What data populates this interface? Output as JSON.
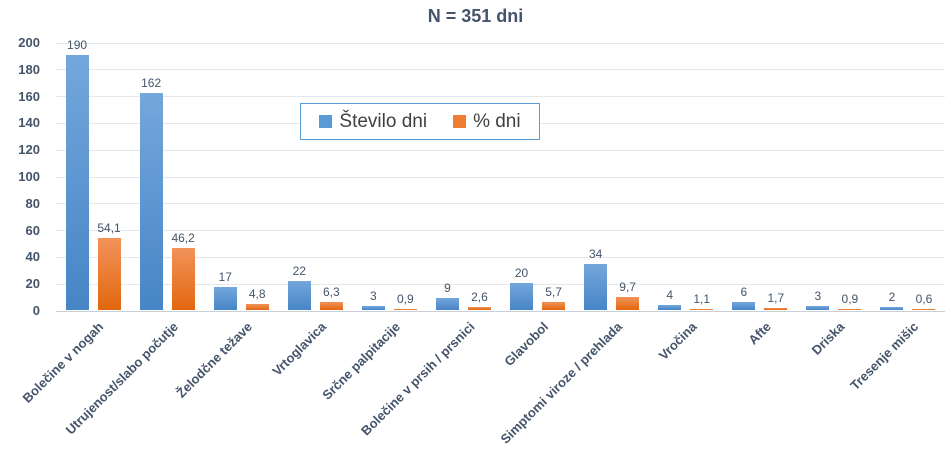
{
  "header": {
    "title": "N = 351 dni"
  },
  "colors": {
    "blue": "#5B9BD5",
    "blue_top": "#74A7DC",
    "blue_bottom": "#4785C6",
    "orange": "#ED7D31",
    "orange_top": "#F2935A",
    "orange_bottom": "#E2670E",
    "axis_text": "#44546A",
    "grid": "#E4E8EC",
    "legend_border": "#5B9BD5",
    "legend_text": "#404040"
  },
  "chart_data": {
    "type": "bar",
    "title": "N = 351 dni",
    "categories": [
      "Bolečine v nogah",
      "Utrujenost/slabo počutje",
      "Želodčne težave",
      "Vrtoglavica",
      "Srčne palpitacije",
      "Bolečine v prsih / prsnici",
      "Glavobol",
      "Simptomi viroze / prehlada",
      "Vročina",
      "Afte",
      "Driska",
      "Tresenje mišic"
    ],
    "series": [
      {
        "name": "Število dni",
        "values": [
          190,
          162,
          17,
          22,
          3,
          9,
          20,
          34,
          4,
          6,
          3,
          2
        ],
        "labels": [
          "190",
          "162",
          "17",
          "22",
          "3",
          "9",
          "20",
          "34",
          "4",
          "6",
          "3",
          "2"
        ]
      },
      {
        "name": "% dni",
        "values": [
          54.1,
          46.2,
          4.8,
          6.3,
          0.9,
          2.6,
          5.7,
          9.7,
          1.1,
          1.7,
          0.9,
          0.6
        ],
        "labels": [
          "54,1",
          "46,2",
          "4,8",
          "6,3",
          "0,9",
          "2,6",
          "5,7",
          "9,7",
          "1,1",
          "1,7",
          "0,9",
          "0,6"
        ]
      }
    ],
    "xlabel": "",
    "ylabel": "",
    "ylim": [
      0,
      200
    ],
    "yticks": [
      0,
      20,
      40,
      60,
      80,
      100,
      120,
      140,
      160,
      180,
      200
    ],
    "grid": true,
    "legend_position": "inside-top-center"
  }
}
